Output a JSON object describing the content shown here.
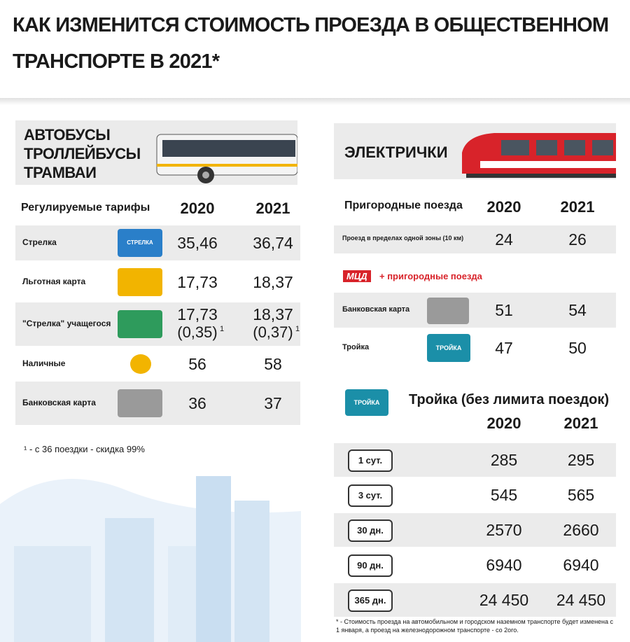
{
  "header": {
    "title_lines": [
      "КАК ИЗМЕНИТСЯ СТОИМОСТЬ ПРОЕЗДА В ОБЩЕСТВЕННОМ",
      "ТРАНСПОРТЕ В 2021*"
    ]
  },
  "bus_section": {
    "heading_lines": [
      "АВТОБУСЫ",
      "ТРОЛЛЕЙБУСЫ",
      "ТРАМВАИ"
    ],
    "columns": [
      "Регулируемые тарифы",
      "2020",
      "2021"
    ],
    "rows": [
      {
        "name": "Стрелка",
        "card": "СТРЕЛКА",
        "v2020": "35,46",
        "v2021": "36,74"
      },
      {
        "name": "Льготная карта",
        "v2020": "17,73",
        "v2021": "18,37"
      },
      {
        "name": "\"Стрелка\" учащегося",
        "v2020": "17,73",
        "v2021": "18,37",
        "n2020": "(0,35)",
        "n2021": "(0,37)",
        "mark": "1"
      },
      {
        "name": "Наличные",
        "v2020": "56",
        "v2021": "58"
      },
      {
        "name": "Банковская карта",
        "v2020": "36",
        "v2021": "37"
      }
    ],
    "footnote": "¹ - с 36 поездки - скидка 99%"
  },
  "train_section": {
    "heading": "ЭЛЕКТРИЧКИ",
    "columns": [
      "Пригородные поезда",
      "2020",
      "2021"
    ],
    "rows": [
      {
        "name": "Проезд в пределах одной зоны (10 км)",
        "v2020": "24",
        "v2021": "26"
      }
    ],
    "mcd": {
      "badge": "МЦД",
      "label": "+ пригородные поезда",
      "rows": [
        {
          "name": "Банковская карта",
          "v2020": "51",
          "v2021": "54"
        },
        {
          "name": "Тройка",
          "card": "ТРОЙКА",
          "v2020": "47",
          "v2021": "50"
        }
      ]
    },
    "troika": {
      "card": "ТРОЙКА",
      "title": "Тройка (без лимита поездок)",
      "columns": [
        "2020",
        "2021"
      ],
      "rows": [
        {
          "name": "1 сут.",
          "v2020": "285",
          "v2021": "295"
        },
        {
          "name": "3 сут.",
          "v2020": "545",
          "v2021": "565"
        },
        {
          "name": "30 дн.",
          "v2020": "2570",
          "v2021": "2660"
        },
        {
          "name": "90 дн.",
          "v2020": "6940",
          "v2021": "6940"
        },
        {
          "name": "365 дн.",
          "v2020": "24 450",
          "v2021": "24 450"
        }
      ]
    }
  },
  "footer": {
    "note": "* - Стоимость проезда на автомобильном и городском наземном транспорте будет изменена с 1 января, а проезд на железнодорожном транспорте - со 2ого."
  }
}
